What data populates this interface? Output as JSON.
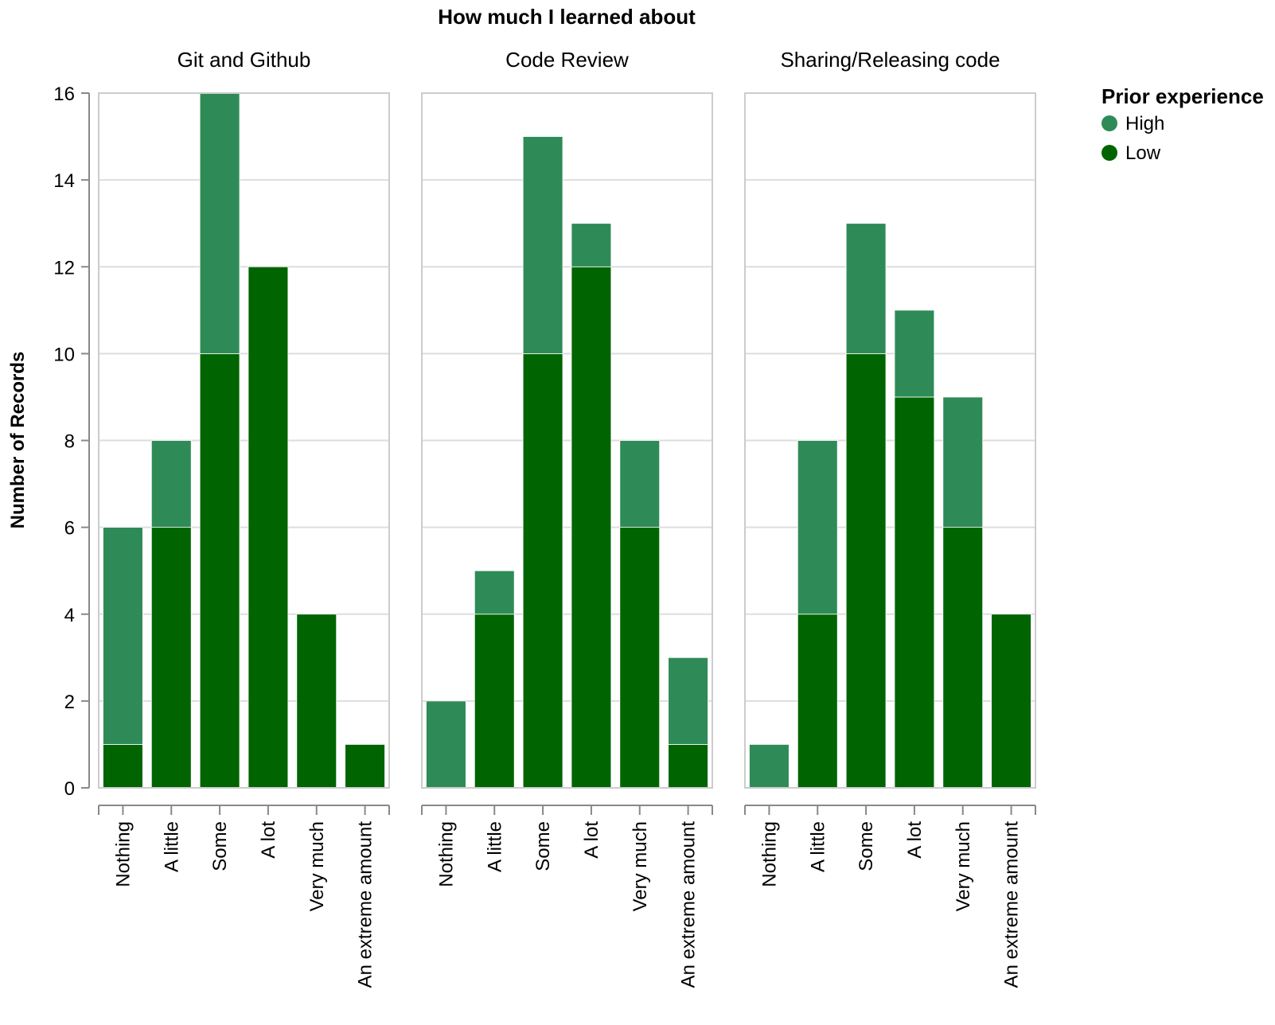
{
  "chart_data": {
    "type": "bar",
    "stacked": true,
    "title": "How much I learned about",
    "ylabel": "Number of Records",
    "ylim": [
      0,
      16
    ],
    "yticks": [
      0,
      2,
      4,
      6,
      8,
      10,
      12,
      14,
      16
    ],
    "grid": true,
    "categories": [
      "Nothing",
      "A little",
      "Some",
      "A lot",
      "Very much",
      "An extreme amount"
    ],
    "legend": {
      "title": "Prior experience",
      "placement": "top-right",
      "entries": [
        {
          "name": "High",
          "color": "#2e8b57"
        },
        {
          "name": "Low",
          "color": "#006400"
        }
      ]
    },
    "facets": [
      {
        "title": "Git and Github",
        "series": [
          {
            "name": "Low",
            "values": [
              1,
              6,
              10,
              12,
              4,
              1
            ]
          },
          {
            "name": "High",
            "values": [
              5,
              2,
              6,
              0,
              0,
              0
            ]
          }
        ]
      },
      {
        "title": "Code Review",
        "series": [
          {
            "name": "Low",
            "values": [
              0,
              4,
              10,
              12,
              6,
              1
            ]
          },
          {
            "name": "High",
            "values": [
              2,
              1,
              5,
              1,
              2,
              2
            ]
          }
        ]
      },
      {
        "title": "Sharing/Releasing code",
        "series": [
          {
            "name": "Low",
            "values": [
              0,
              4,
              10,
              9,
              6,
              4
            ]
          },
          {
            "name": "High",
            "values": [
              1,
              4,
              3,
              2,
              3,
              0
            ]
          }
        ]
      }
    ]
  }
}
